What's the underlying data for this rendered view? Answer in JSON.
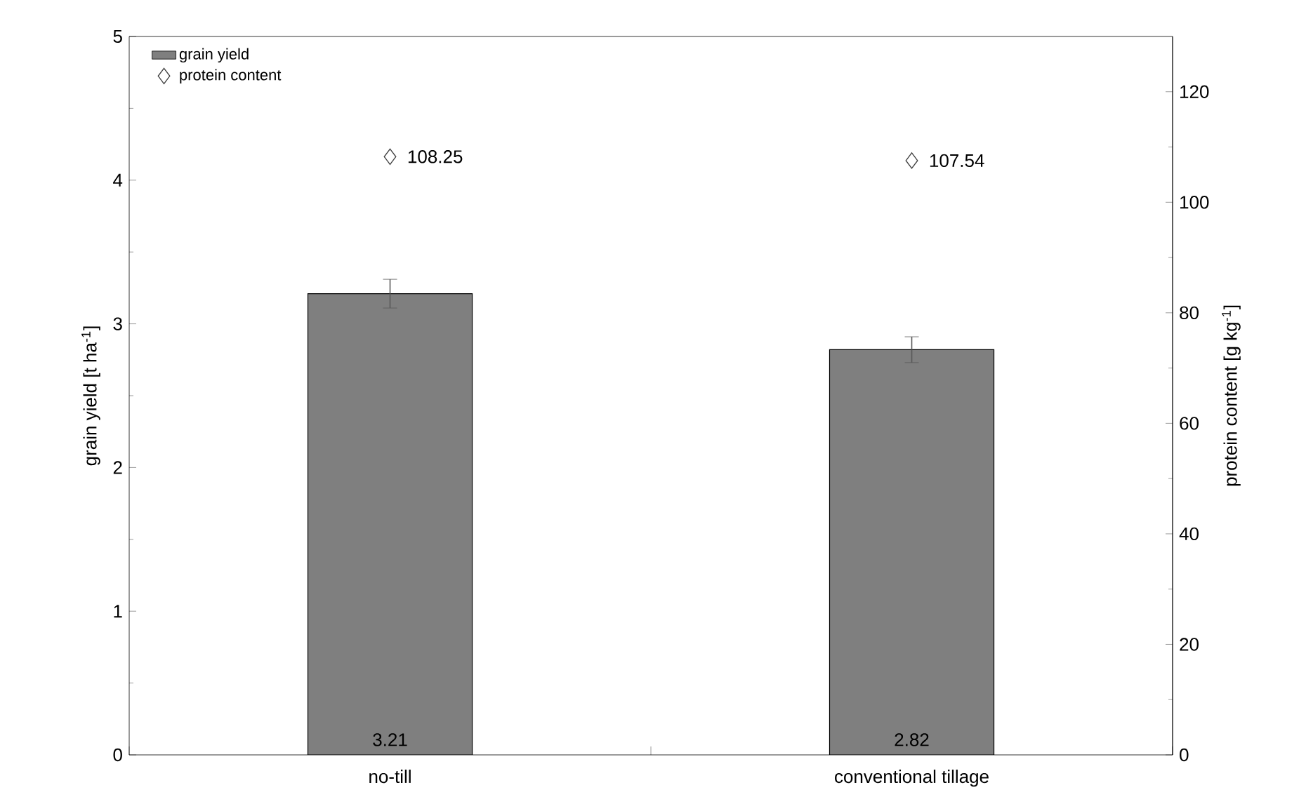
{
  "chart_data": {
    "type": "bar",
    "categories": [
      "no-till",
      "conventional tillage"
    ],
    "ylabel": "grain yield [t ha$^{-1}$]",
    "y2label": "protein content [g kg$^{-1}$]",
    "series": [
      {
        "name": "grain yield",
        "color": "#7f7f7f",
        "values": [
          3.21,
          2.82
        ],
        "errors": [
          0.1,
          0.09
        ]
      },
      {
        "name": "protein content",
        "type": "scatter",
        "axis": "y2",
        "color": "#404040",
        "marker": "diamond",
        "values": [
          108.25,
          107.54
        ]
      }
    ],
    "ylim": [
      0,
      5
    ],
    "yticks": [
      0,
      1,
      2,
      3,
      4,
      5
    ],
    "y2lim": [
      0,
      130
    ],
    "y2ticks": [
      0,
      20,
      40,
      60,
      80,
      100,
      120
    ],
    "data_labels": true,
    "legend": "top left",
    "grid": false
  }
}
